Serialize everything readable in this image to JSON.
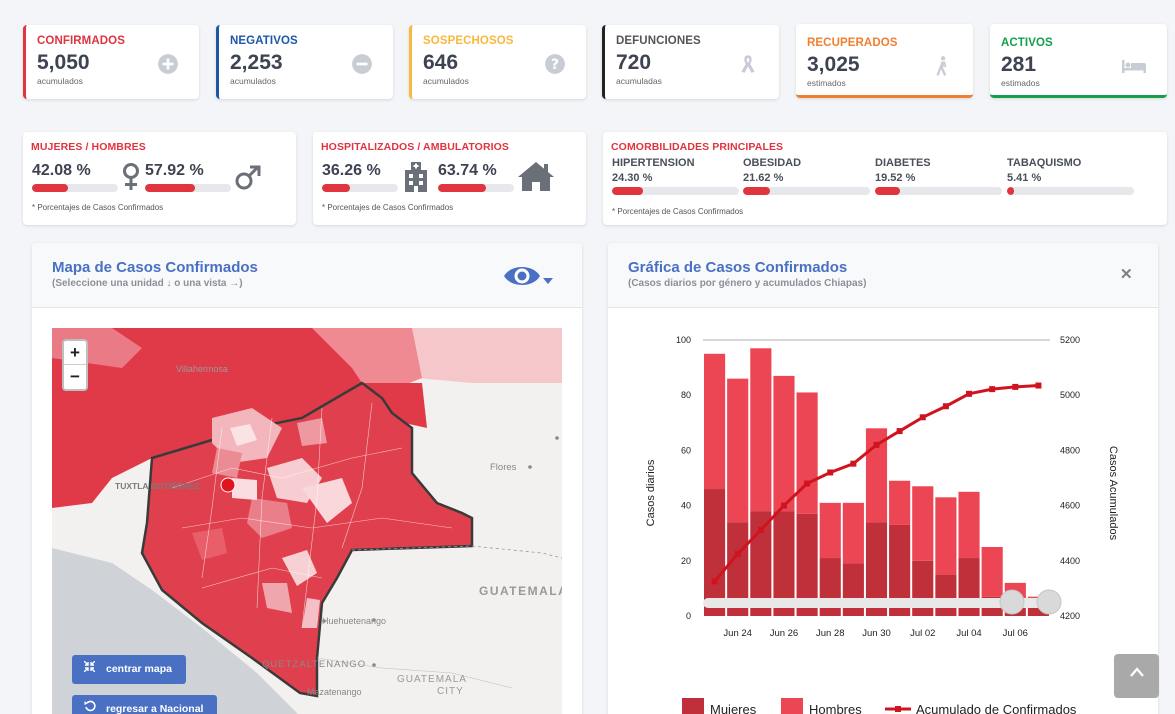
{
  "stats": [
    {
      "title": "CONFIRMADOS",
      "value": "5,050",
      "sub": "acumulados",
      "color": "#e0343f",
      "icon": "plus-circle-icon"
    },
    {
      "title": "NEGATIVOS",
      "value": "2,253",
      "sub": "acumulados",
      "color": "#1d58a8",
      "icon": "minus-circle-icon"
    },
    {
      "title": "SOSPECHOSOS",
      "value": "646",
      "sub": "acumulados",
      "color": "#f6b93b",
      "icon": "question-circle-icon"
    },
    {
      "title": "DEFUNCIONES",
      "value": "720",
      "sub": "acumuladas",
      "color": "#222222",
      "icon": "ribbon-icon"
    },
    {
      "title": "RECUPERADOS",
      "value": "3,025",
      "sub": "estimados",
      "color": "#f07f2e",
      "icon": "walking-icon"
    },
    {
      "title": "ACTIVOS",
      "value": "281",
      "sub": "estimados",
      "color": "#12a04a",
      "icon": "bed-icon"
    }
  ],
  "gender": {
    "title": "MUJERES / HOMBRES",
    "women": "42.08 %",
    "women_pct": 42.08,
    "men": "57.92 %",
    "men_pct": 57.92,
    "note": "* Porcentajes  de Casos Confirmados"
  },
  "hospital": {
    "title": "HOSPITALIZADOS / AMBULATORIOS",
    "hosp": "36.26 %",
    "hosp_pct": 36.26,
    "amb": "63.74 %",
    "amb_pct": 63.74,
    "note": "* Porcentajes  de Casos Confirmados"
  },
  "comorb": {
    "title": "COMORBILIDADES PRINCIPALES",
    "items": [
      {
        "name": "HIPERTENSION",
        "value": "24.30 %",
        "pct": 24.3
      },
      {
        "name": "OBESIDAD",
        "value": "21.62 %",
        "pct": 21.62
      },
      {
        "name": "DIABETES",
        "value": "19.52 %",
        "pct": 19.52
      },
      {
        "name": "TABAQUISMO",
        "value": "5.41 %",
        "pct": 5.41
      }
    ],
    "note": "* Porcentajes  de Casos Confirmados"
  },
  "map_panel": {
    "title": "Mapa de Casos Confirmados",
    "subtitle": "(Seleccione una unidad ↓ o una vista →)",
    "zoom_in": "+",
    "zoom_out": "−",
    "center_btn": "centrar mapa",
    "back_btn": "regresar a Nacional",
    "labels": {
      "villahermosa": "Villahermosa",
      "tuxtla": "TUXTLA GUTIÉRREZ",
      "flores": "Flores",
      "guatemala": "GUATEMALA",
      "huehuetenango": "Huehuetenango",
      "quetzaltenango": "QUETZALTENANGO",
      "mazatenango": "Mazatenango",
      "guatemala_city": "GUATEMALA",
      "city": "CITY"
    }
  },
  "chart_panel": {
    "title": "Gráfica de Casos Confirmados",
    "subtitle": "(Casos diarios por género y acumulados Chiapas)",
    "close": "✕"
  },
  "chart_data": {
    "type": "bar",
    "ylabel": "Casos diarios",
    "y2label": "Casos Acumulados",
    "ylim": [
      0,
      100
    ],
    "y2lim": [
      4200,
      5200
    ],
    "yticks": [
      "0",
      "20",
      "40",
      "60",
      "80",
      "100"
    ],
    "y2ticks": [
      "4200",
      "4400",
      "4600",
      "4800",
      "5000",
      "5200"
    ],
    "xtick_labels": [
      "Jun 24",
      "Jun 26",
      "Jun 28",
      "Jun 30",
      "Jul 02",
      "Jul 04",
      "Jul 06"
    ],
    "x": [
      "Jun 23",
      "Jun 24",
      "Jun 25",
      "Jun 26",
      "Jun 27",
      "Jun 28",
      "Jun 29",
      "Jun 30",
      "Jul 01",
      "Jul 02",
      "Jul 03",
      "Jul 04",
      "Jul 05",
      "Jul 06",
      "Jul 07"
    ],
    "series": [
      {
        "name": "Mujeres",
        "color": "#c0303a",
        "values": [
          46,
          34,
          38,
          38,
          37,
          21,
          19,
          34,
          33,
          20,
          15,
          21,
          7,
          3,
          6
        ]
      },
      {
        "name": "Hombres",
        "color": "#ec4654",
        "values": [
          49,
          52,
          59,
          49,
          44,
          20,
          22,
          34,
          16,
          27,
          28,
          24,
          18,
          9,
          1
        ]
      },
      {
        "name": "Acumulado de Confirmados",
        "color": "#d0141f",
        "values": [
          4325,
          4425,
          4512,
          4600,
          4680,
          4720,
          4752,
          4820,
          4870,
          4920,
          4960,
          5005,
          5022,
          5030,
          5035
        ]
      }
    ],
    "legend_position": "bottom"
  }
}
